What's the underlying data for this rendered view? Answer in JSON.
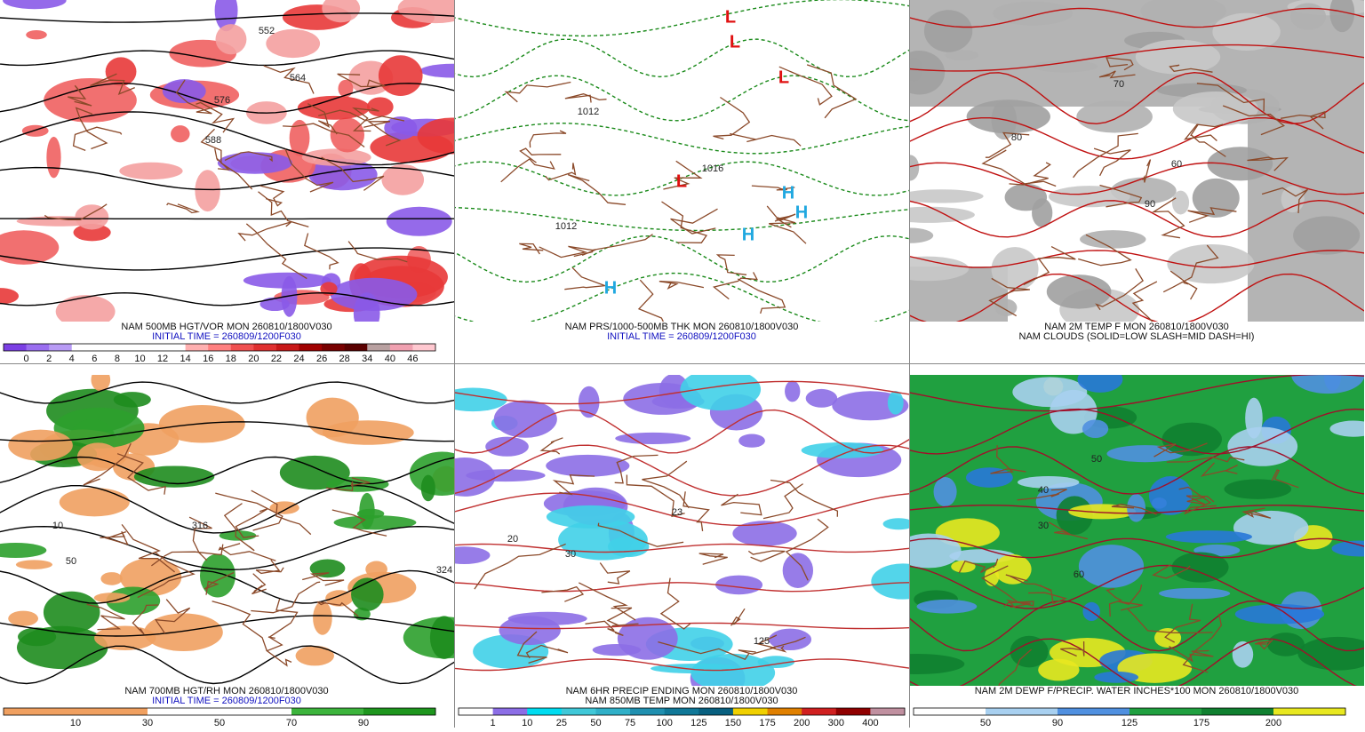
{
  "panels": [
    {
      "captions": [
        "NAM 500MB HGT/VOR MON 260810/1800V030",
        "INITIAL TIME = 260809/1200F030"
      ],
      "map_labels": [
        "552",
        "564",
        "576",
        "588"
      ],
      "colorbar": {
        "labels": [
          "0",
          "2",
          "4",
          "6",
          "8",
          "10",
          "12",
          "14",
          "16",
          "18",
          "20",
          "22",
          "24",
          "26",
          "28",
          "34",
          "40",
          "46"
        ],
        "colors": [
          "#7b3fe4",
          "#9a6ef0",
          "#b89bf5",
          "#ffffff",
          "#ffffff",
          "#ffffff",
          "#ffffff",
          "#ffffff",
          "#ffb0b0",
          "#ff8080",
          "#f05050",
          "#e03030",
          "#c81818",
          "#a00000",
          "#780000",
          "#5a0000",
          "#b8a0a0",
          "#f0a0b0",
          "#ffc8d0"
        ]
      }
    },
    {
      "captions": [
        "NAM PRS/1000-500MB THK MON 260810/1800V030",
        "INITIAL TIME = 260809/1200F030"
      ],
      "map_labels": [
        "L",
        "L",
        "L",
        "L",
        "H",
        "H",
        "H",
        "H",
        "1012",
        "1012",
        "1016"
      ]
    },
    {
      "captions": [
        "NAM 2M TEMP F MON 260810/1800V030",
        "NAM CLOUDS (SOLID=LOW SLASH=MID DASH=HI)"
      ],
      "map_labels": [
        "80",
        "90",
        "70",
        "60"
      ]
    },
    {
      "captions": [
        "NAM 700MB HGT/RH MON 260810/1800V030",
        "INITIAL TIME = 260809/1200F030"
      ],
      "map_labels": [
        "10",
        "50",
        "316",
        "324"
      ],
      "colorbar": {
        "labels": [
          "10",
          "30",
          "50",
          "70",
          "90"
        ],
        "colors": [
          "#f0a060",
          "#f0a060",
          "#ffffff",
          "#ffffff",
          "#3cb43c",
          "#1e961e"
        ]
      }
    },
    {
      "captions": [
        "NAM 6HR PRECIP ENDING MON 260810/1800V030",
        "NAM 850MB TEMP MON 260810/1800V030"
      ],
      "map_labels": [
        "20",
        "30",
        "23",
        "125"
      ],
      "colorbar": {
        "labels": [
          "1",
          "10",
          "25",
          "50",
          "75",
          "100",
          "125",
          "150",
          "175",
          "200",
          "300",
          "400"
        ],
        "colors": [
          "#ffffff",
          "#8c6ee6",
          "#00dcf0",
          "#40c8d8",
          "#30b0c8",
          "#2090b0",
          "#107898",
          "#086080",
          "#f0d000",
          "#e08000",
          "#d02020",
          "#900000",
          "#c090a0"
        ]
      }
    },
    {
      "captions": [
        "NAM 2M DEWP F/PRECIP. WATER INCHES*100 MON 260810/1800V030"
      ],
      "map_labels": [
        "40",
        "50",
        "60",
        "30"
      ],
      "colorbar": {
        "labels": [
          "50",
          "90",
          "125",
          "175",
          "200"
        ],
        "colors": [
          "#ffffff",
          "#a8d0f0",
          "#5090e0",
          "#20a040",
          "#108030",
          "#e8e820"
        ]
      }
    }
  ]
}
